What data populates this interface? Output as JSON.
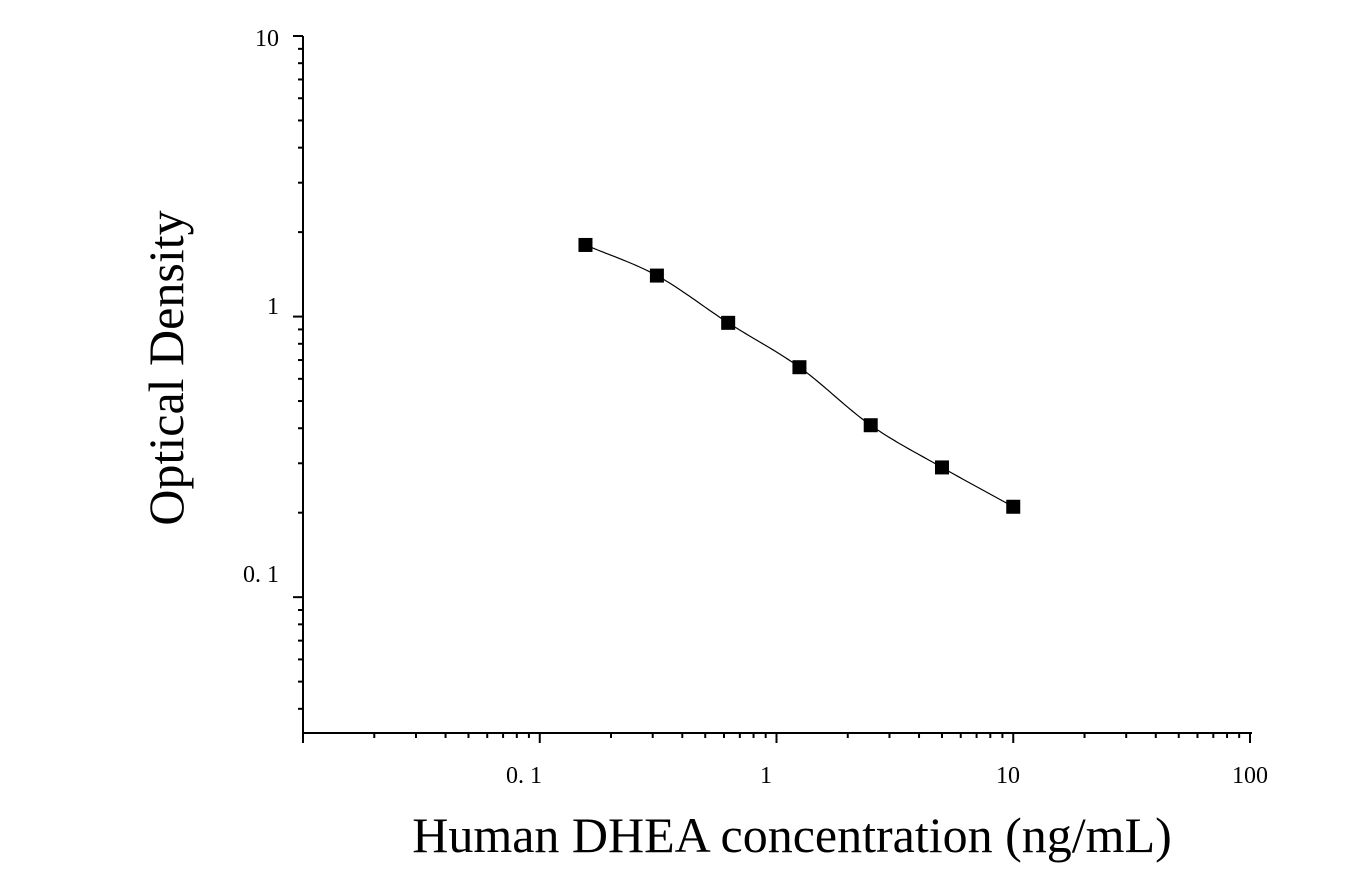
{
  "chart_data": {
    "type": "scatter",
    "title": "",
    "xlabel": "Human DHEA concentration (ng/mL)",
    "ylabel": "Optical Density",
    "x_scale": "log",
    "y_scale": "log",
    "xlim": [
      0.01,
      100
    ],
    "ylim": [
      0.0328,
      10
    ],
    "x_tick_labels": [
      "0. 1",
      "1",
      "10",
      "100"
    ],
    "y_tick_labels": [
      "10",
      "1",
      "0. 1"
    ],
    "grid": false,
    "legend": "none",
    "marker": "square",
    "marker_color": "#000000",
    "fit_curve": true,
    "series": [
      {
        "x": [
          0.156,
          0.3125,
          0.625,
          1.25,
          2.5,
          5,
          10
        ],
        "y": [
          1.8,
          1.4,
          0.95,
          0.66,
          0.41,
          0.29,
          0.21
        ]
      }
    ]
  }
}
